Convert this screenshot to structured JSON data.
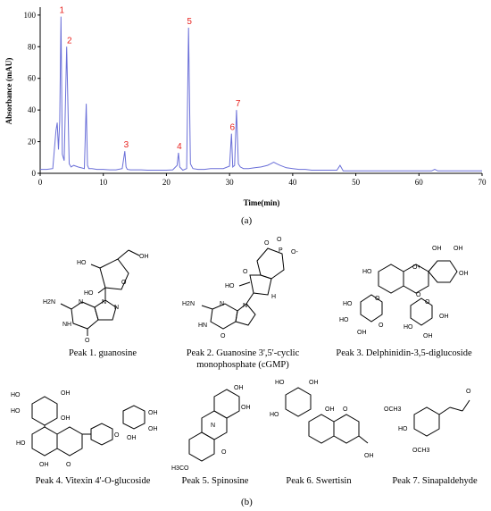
{
  "chart_data": {
    "type": "line",
    "xlabel": "Time(min)",
    "ylabel": "Absorbance (mAU)",
    "xlim": [
      0,
      70
    ],
    "ylim": [
      0,
      105
    ],
    "xticks": [
      0,
      10,
      20,
      30,
      40,
      50,
      60,
      70
    ],
    "yticks": [
      0,
      20,
      40,
      60,
      80,
      100
    ],
    "line_color": "#6a6fd8",
    "peak_label_color": "#e8231f",
    "series": [
      {
        "x": [
          0,
          1,
          2,
          2.5,
          2.7,
          2.9,
          3.1,
          3.3,
          3.5,
          3.8,
          4.2,
          4.6,
          4.9,
          5.3,
          6,
          7,
          7.3,
          7.5,
          7.7,
          8.2,
          9,
          10,
          11,
          12,
          13,
          13.4,
          13.6,
          13.8,
          14.3,
          15,
          16,
          17,
          18,
          19,
          20,
          21,
          21.7,
          21.9,
          22.1,
          22.6,
          23.2,
          23.5,
          23.8,
          24.2,
          25,
          26,
          27,
          28,
          29,
          30,
          30.3,
          30.5,
          30.8,
          31.1,
          31.4,
          31.7,
          32.2,
          33,
          34,
          35,
          36,
          36.5,
          37,
          37.5,
          38,
          39,
          40,
          41,
          42,
          43,
          44,
          45,
          46,
          47,
          47.5,
          48,
          50,
          55,
          60,
          62,
          62.5,
          63,
          65,
          70
        ],
        "y": [
          2.5,
          2.5,
          3,
          27,
          32,
          15,
          33,
          99,
          12,
          8,
          80,
          6,
          4,
          5,
          4,
          3,
          44,
          5,
          3,
          3,
          2.5,
          2.5,
          2.2,
          2.2,
          3,
          14,
          4,
          2.5,
          2.2,
          2.2,
          2.2,
          2,
          2,
          2,
          2,
          2.2,
          5,
          13,
          4,
          2,
          3,
          92,
          6,
          3,
          2.5,
          2.5,
          3,
          3,
          3,
          4.5,
          25,
          4,
          5,
          40,
          6,
          4,
          3,
          3,
          3.5,
          4,
          5,
          6,
          7,
          6,
          5,
          3.5,
          3,
          2.5,
          2.5,
          2,
          2,
          2,
          2,
          2,
          5,
          1.5,
          1.5,
          1.5,
          1.5,
          1.5,
          2.5,
          1.5,
          1.5,
          1.5
        ]
      }
    ],
    "peak_labels": [
      {
        "label": "1",
        "x": 3.3,
        "y": 99
      },
      {
        "label": "2",
        "x": 4.5,
        "y": 80
      },
      {
        "label": "3",
        "x": 13.5,
        "y": 14
      },
      {
        "label": "4",
        "x": 21.9,
        "y": 13
      },
      {
        "label": "5",
        "x": 23.5,
        "y": 92
      },
      {
        "label": "6",
        "x": 30.3,
        "y": 25
      },
      {
        "label": "7",
        "x": 31.2,
        "y": 40
      }
    ]
  },
  "panel_a": "(a)",
  "panel_b": "(b)",
  "captions": {
    "peak1": "Peak 1. guanosine",
    "peak2_line1": "Peak 2. Guanosine 3',5'-cyclic",
    "peak2_line2": "monophosphate (cGMP)",
    "peak3": "Peak 3. Delphinidin-3,5-diglucoside",
    "peak4": "Peak 4. Vitexin 4'-O-glucoside",
    "peak5": "Peak 5. Spinosine",
    "peak6": "Peak 6. Swertisin",
    "peak7": "Peak 7. Sinapaldehyde"
  },
  "structure_labels": {
    "OH": "OH",
    "HO": "HO",
    "H2N": "H2N",
    "N": "N",
    "NH": "NH",
    "HN": "HN",
    "O": "O",
    "P": "P",
    "H": "H",
    "OCH3": "OCH3",
    "H3CO": "H3CO",
    "OPlus": "O+",
    "OMinus": "O-"
  }
}
